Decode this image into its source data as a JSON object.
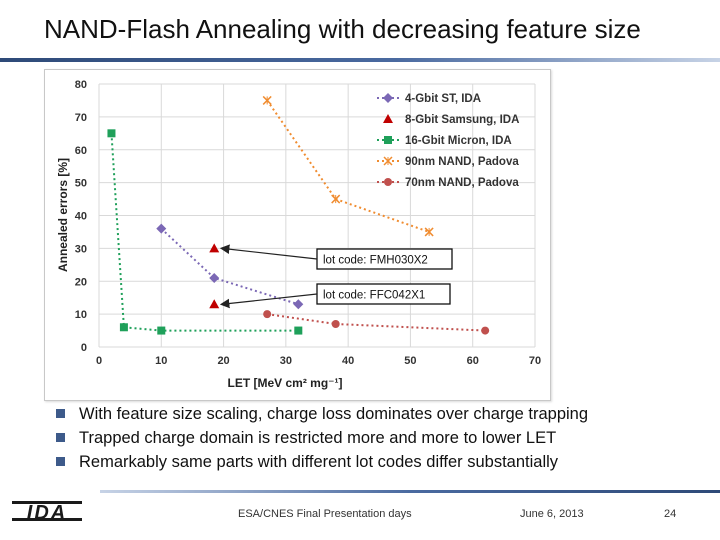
{
  "slide": {
    "title": "NAND-Flash Annealing with decreasing feature size",
    "bullets": [
      "With feature size scaling, charge loss dominates over charge trapping",
      "Trapped charge domain is restricted more and more to lower LET",
      "Remarkably same parts with different lot codes differ substantially"
    ],
    "footer": {
      "logo_text": "IDA",
      "center": "ESA/CNES Final Presentation days",
      "date": "June 6, 2013",
      "page": "24"
    }
  },
  "chart_data": {
    "type": "scatter",
    "xlabel": "LET [MeV cm² mg⁻¹]",
    "ylabel": "Annealed errors [%]",
    "xlim": [
      0,
      70
    ],
    "ylim": [
      0,
      80
    ],
    "xticks": [
      0,
      10,
      20,
      30,
      40,
      50,
      60,
      70
    ],
    "yticks": [
      0,
      10,
      20,
      30,
      40,
      50,
      60,
      70,
      80
    ],
    "grid": true,
    "legend_position": "top-right",
    "series": [
      {
        "name": "4-Gbit ST, IDA",
        "color": "#7b68b5",
        "marker": "diamond",
        "line": "dotted",
        "points": [
          [
            10,
            36
          ],
          [
            18.5,
            21
          ],
          [
            32,
            13
          ]
        ]
      },
      {
        "name": "8-Gbit Samsung, IDA",
        "color": "#c00000",
        "marker": "triangle",
        "line": "none",
        "points": [
          [
            18.5,
            30
          ],
          [
            18.5,
            13
          ]
        ]
      },
      {
        "name": "16-Gbit Micron, IDA",
        "color": "#1fa05a",
        "marker": "square",
        "line": "dotted",
        "points": [
          [
            2,
            65
          ],
          [
            4,
            6
          ],
          [
            10,
            5
          ],
          [
            32,
            5
          ]
        ]
      },
      {
        "name": "90nm NAND, Padova",
        "color": "#f08c30",
        "marker": "x",
        "line": "dotted",
        "points": [
          [
            27,
            75
          ],
          [
            38,
            45
          ],
          [
            53,
            35
          ]
        ]
      },
      {
        "name": "70nm NAND, Padova",
        "color": "#c0504d",
        "marker": "circle",
        "line": "dotted",
        "points": [
          [
            27,
            10
          ],
          [
            38,
            7
          ],
          [
            62,
            5
          ]
        ]
      }
    ],
    "annotations": [
      {
        "text": "lot code: FMH030X2",
        "arrow_to": [
          18.5,
          30
        ]
      },
      {
        "text": "lot code: FFC042X1",
        "arrow_to": [
          18.5,
          13
        ]
      }
    ]
  }
}
